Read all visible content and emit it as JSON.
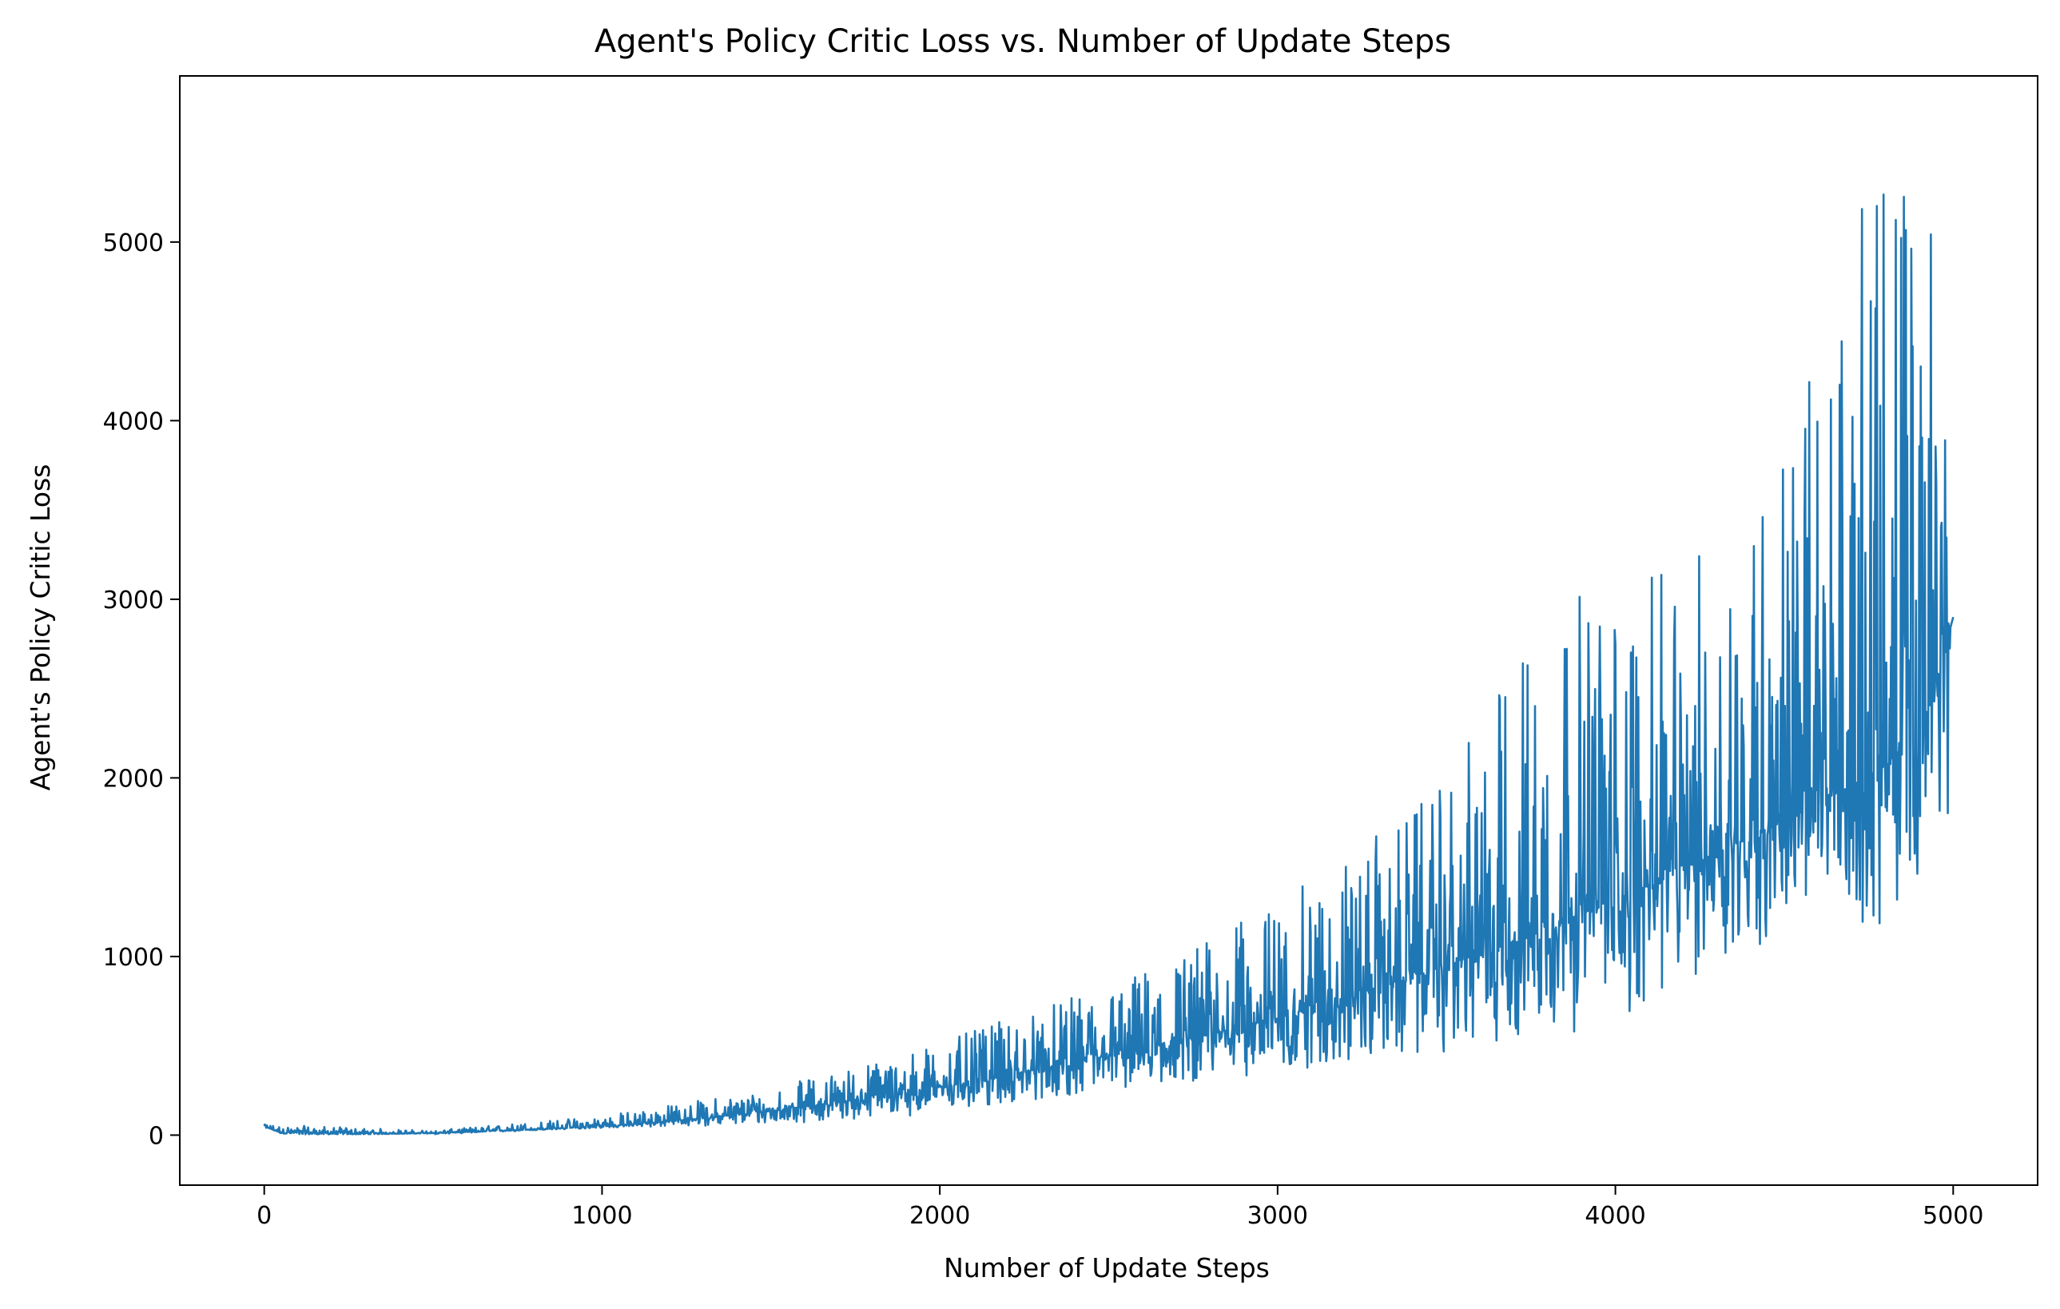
{
  "chart_data": {
    "type": "line",
    "title": "Agent's Policy Critic Loss vs. Number of Update Steps",
    "xlabel": "Number of Update Steps",
    "ylabel": "Agent's Policy Critic Loss",
    "xlim": [
      -250,
      5250
    ],
    "ylim": [
      -280,
      5930
    ],
    "xticks": [
      0,
      1000,
      2000,
      3000,
      4000,
      5000
    ],
    "yticks": [
      0,
      1000,
      2000,
      3000,
      4000,
      5000
    ],
    "grid": false,
    "legend": "none",
    "series": [
      {
        "color": "#1f77b4",
        "x": [
          0,
          50,
          100,
          200,
          300,
          400,
          500,
          600,
          700,
          800,
          900,
          1000,
          1100,
          1200,
          1300,
          1400,
          1500,
          1600,
          1700,
          1800,
          1900,
          2000,
          2100,
          2200,
          2300,
          2400,
          2500,
          2600,
          2700,
          2800,
          2900,
          3000,
          3100,
          3200,
          3300,
          3400,
          3500,
          3600,
          3700,
          3800,
          3900,
          4000,
          4100,
          4200,
          4300,
          4400,
          4500,
          4600,
          4700,
          4800,
          4900,
          5000
        ],
        "y": [
          50,
          10,
          5,
          5,
          5,
          8,
          12,
          18,
          25,
          32,
          40,
          50,
          62,
          78,
          95,
          115,
          135,
          160,
          185,
          210,
          240,
          270,
          300,
          335,
          370,
          405,
          440,
          480,
          520,
          565,
          610,
          660,
          710,
          770,
          830,
          890,
          950,
          1020,
          1090,
          1160,
          1240,
          1320,
          1400,
          1490,
          1580,
          1670,
          1760,
          1860,
          1960,
          2070,
          2180,
          2900
        ],
        "noise_band": {
          "x": [
            0,
            500,
            1000,
            1500,
            2000,
            2500,
            3000,
            3500,
            3800,
            4000,
            4200,
            4400,
            4600,
            4800,
            5000
          ],
          "low": [
            40,
            5,
            40,
            60,
            120,
            250,
            350,
            460,
            560,
            600,
            840,
            1000,
            1340,
            1110,
            1860
          ],
          "high": [
            60,
            25,
            110,
            260,
            520,
            840,
            1300,
            1960,
            3100,
            3020,
            3210,
            3560,
            4380,
            5640,
            5200
          ]
        }
      }
    ]
  }
}
